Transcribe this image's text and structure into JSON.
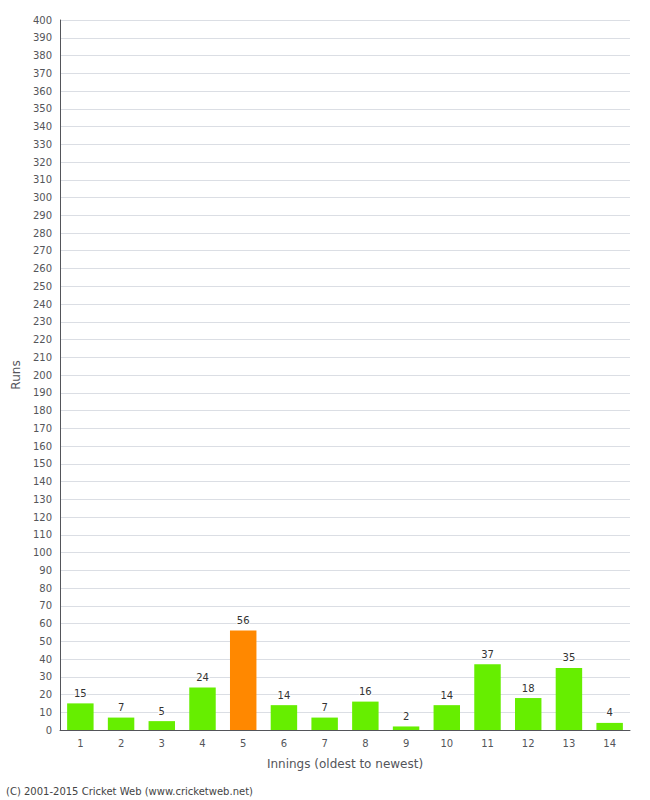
{
  "chart_data": {
    "type": "bar",
    "categories": [
      "1",
      "2",
      "3",
      "4",
      "5",
      "6",
      "7",
      "8",
      "9",
      "10",
      "11",
      "12",
      "13",
      "14"
    ],
    "values": [
      15,
      7,
      5,
      24,
      56,
      14,
      7,
      16,
      2,
      14,
      37,
      18,
      35,
      4
    ],
    "colors": [
      "#66ee00",
      "#66ee00",
      "#66ee00",
      "#66ee00",
      "#ff8800",
      "#66ee00",
      "#66ee00",
      "#66ee00",
      "#66ee00",
      "#66ee00",
      "#66ee00",
      "#66ee00",
      "#66ee00",
      "#66ee00"
    ],
    "xlabel": "Innings (oldest to newest)",
    "ylabel": "Runs",
    "ylim": [
      0,
      400
    ],
    "yticks": [
      0,
      10,
      20,
      30,
      40,
      50,
      60,
      70,
      80,
      90,
      100,
      110,
      120,
      130,
      140,
      150,
      160,
      170,
      180,
      190,
      200,
      210,
      220,
      230,
      240,
      250,
      260,
      270,
      280,
      290,
      300,
      310,
      320,
      330,
      340,
      350,
      360,
      370,
      380,
      390,
      400
    ],
    "data_labels": true,
    "grid": true,
    "annotations": [
      "(C) 2001-2015 Cricket Web (www.cricketweb.net)"
    ]
  }
}
